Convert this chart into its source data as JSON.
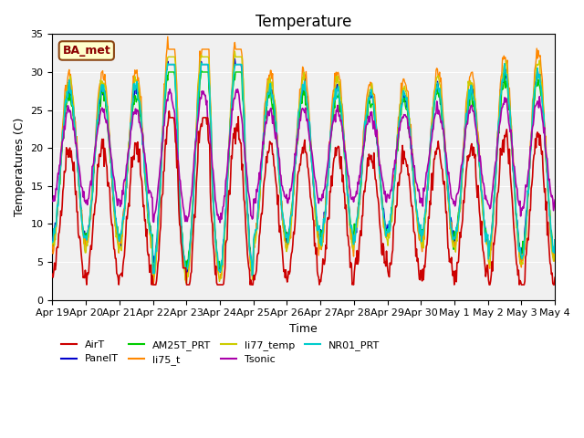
{
  "title": "Temperature",
  "xlabel": "Time",
  "ylabel": "Temperatures (C)",
  "ylim": [
    0,
    35
  ],
  "xlim_days": 15,
  "annotation": "BA_met",
  "series_colors": {
    "AirT": "#cc0000",
    "PanelT": "#0000cc",
    "AM25T_PRT": "#00cc00",
    "li75_t": "#ff8800",
    "li77_temp": "#cccc00",
    "Tsonic": "#aa00aa",
    "NR01_PRT": "#00cccc"
  },
  "x_tick_labels": [
    "Apr 19",
    "Apr 20",
    "Apr 21",
    "Apr 22",
    "Apr 23",
    "Apr 24",
    "Apr 25",
    "Apr 26",
    "Apr 27",
    "Apr 28",
    "Apr 29",
    "Apr 30",
    "May 1",
    "May 2",
    "May 3",
    "May 4"
  ],
  "background_color": "#ffffff",
  "plot_bg_color": "#f0f0f0",
  "title_fontsize": 12,
  "axis_fontsize": 9,
  "tick_fontsize": 8,
  "legend_fontsize": 8
}
